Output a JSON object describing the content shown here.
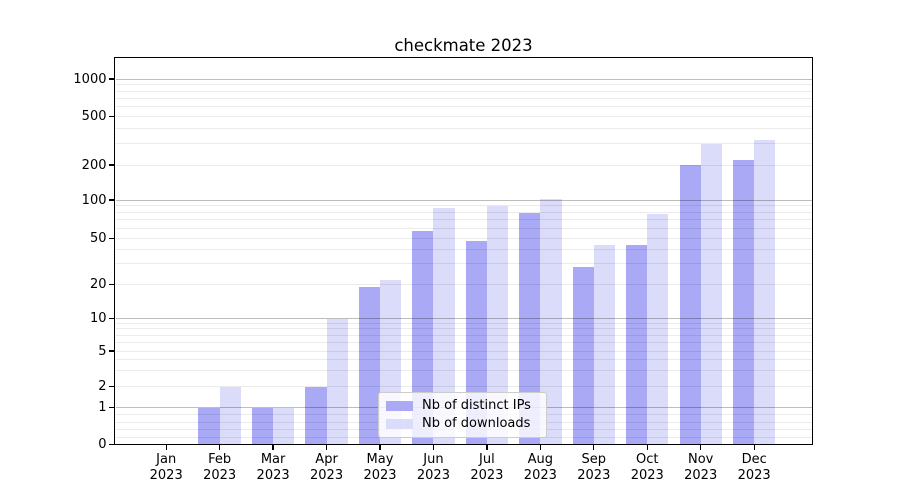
{
  "chart_data": {
    "type": "bar",
    "title": "checkmate 2023",
    "categories": [
      {
        "month": "Jan",
        "year": "2023"
      },
      {
        "month": "Feb",
        "year": "2023"
      },
      {
        "month": "Mar",
        "year": "2023"
      },
      {
        "month": "Apr",
        "year": "2023"
      },
      {
        "month": "May",
        "year": "2023"
      },
      {
        "month": "Jun",
        "year": "2023"
      },
      {
        "month": "Jul",
        "year": "2023"
      },
      {
        "month": "Aug",
        "year": "2023"
      },
      {
        "month": "Sep",
        "year": "2023"
      },
      {
        "month": "Oct",
        "year": "2023"
      },
      {
        "month": "Nov",
        "year": "2023"
      },
      {
        "month": "Dec",
        "year": "2023"
      }
    ],
    "series": [
      {
        "name": "Nb of distinct IPs",
        "color": "#a9a9f6",
        "values": [
          0,
          1,
          1,
          2,
          19,
          57,
          47,
          79,
          28,
          44,
          200,
          220
        ]
      },
      {
        "name": "Nb of downloads",
        "color": "#dbdbfa",
        "values": [
          0,
          2,
          1,
          10,
          22,
          87,
          90,
          102,
          44,
          78,
          300,
          320
        ]
      }
    ],
    "yscale": "symlog",
    "ylim": [
      0,
      1500
    ],
    "yticks": [
      0,
      1,
      2,
      5,
      10,
      20,
      50,
      100,
      200,
      500,
      1000
    ],
    "major_gridlines": [
      1,
      10,
      100,
      1000
    ],
    "minor_gridlines": [
      0.2,
      0.4,
      0.6,
      0.8,
      2,
      3,
      4,
      5,
      6,
      7,
      8,
      9,
      20,
      30,
      40,
      50,
      60,
      70,
      80,
      90,
      200,
      300,
      400,
      500,
      600,
      700,
      800,
      900
    ],
    "grid": true,
    "legend_position": "lower center",
    "axis_color": "#000000",
    "background_color": "#ffffff"
  }
}
